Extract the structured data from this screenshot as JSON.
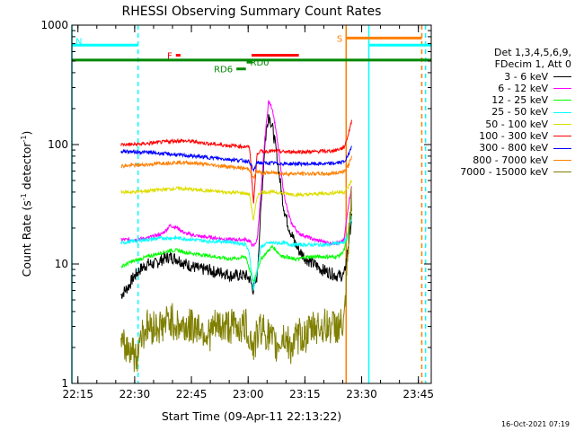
{
  "chart_data": {
    "type": "line",
    "title": "RHESSI Observing Summary Count Rates",
    "xlabel": "Start Time (09-Apr-11 22:13:22)",
    "ylabel_main": "Count Rate (s",
    "ylabel_sup1": "-1",
    "ylabel_mid": " detector",
    "ylabel_sup2": "-1",
    "ylabel_end": ")",
    "x_unit": "minutes after 22:13:22",
    "xlim": [
      0,
      95
    ],
    "ylim": [
      1,
      1000
    ],
    "yscale": "log",
    "x_ticks": [
      {
        "v": 1.6,
        "label": "22:15"
      },
      {
        "v": 16.6,
        "label": "22:30"
      },
      {
        "v": 31.6,
        "label": "22:45"
      },
      {
        "v": 46.6,
        "label": "23:00"
      },
      {
        "v": 61.6,
        "label": "23:15"
      },
      {
        "v": 76.6,
        "label": "23:30"
      },
      {
        "v": 91.6,
        "label": "23:45"
      }
    ],
    "y_ticks": [
      {
        "v": 1,
        "label": "1"
      },
      {
        "v": 10,
        "label": "10"
      },
      {
        "v": 100,
        "label": "100"
      },
      {
        "v": 1000,
        "label": "1000"
      }
    ],
    "legend_header": [
      "Det 1,3,4,5,6,9,",
      "FDecim 1, Att 0"
    ],
    "series": [
      {
        "name": "3 - 6 keV",
        "color": "#000000",
        "x": [
          13,
          14,
          15,
          16,
          18,
          20,
          22,
          24,
          26,
          28,
          30,
          32,
          34,
          36,
          38,
          40,
          42,
          44,
          46,
          47,
          48,
          49,
          50,
          51,
          52,
          53,
          54,
          55,
          56,
          57,
          58,
          59,
          60,
          62,
          64,
          66,
          68,
          70,
          71,
          72,
          73,
          74
        ],
        "y": [
          5.5,
          6,
          6.5,
          7.5,
          9,
          10,
          10,
          11,
          11.5,
          11,
          10,
          9.5,
          9,
          9,
          8.5,
          8.5,
          8,
          8,
          8,
          7.5,
          6,
          8,
          30,
          100,
          180,
          140,
          90,
          50,
          30,
          22,
          18,
          15,
          13,
          11,
          10,
          9,
          8.5,
          8,
          8,
          8,
          14,
          25
        ]
      },
      {
        "name": "6 - 12 keV",
        "color": "#ff00ff",
        "x": [
          13,
          16,
          20,
          24,
          26,
          28,
          30,
          34,
          38,
          42,
          46,
          47,
          48,
          49,
          50,
          51,
          52,
          53,
          54,
          55,
          56,
          57,
          58,
          59,
          60,
          62,
          64,
          66,
          68,
          70,
          71,
          72,
          73,
          74
        ],
        "y": [
          16,
          16,
          16.5,
          18,
          21,
          20,
          18,
          17,
          16.5,
          16,
          16,
          15.5,
          14,
          16,
          40,
          110,
          230,
          200,
          130,
          70,
          40,
          28,
          22,
          20,
          18,
          17,
          16,
          15.5,
          15,
          15,
          15,
          16,
          30,
          45
        ]
      },
      {
        "name": "12 - 25 keV",
        "color": "#00ff00",
        "x": [
          13,
          16,
          20,
          24,
          26,
          28,
          30,
          34,
          38,
          42,
          46,
          47,
          48,
          49,
          50,
          51,
          52,
          53,
          54,
          55,
          56,
          57,
          58,
          59,
          60,
          62,
          64,
          66,
          68,
          70,
          71,
          72,
          73,
          74
        ],
        "y": [
          9.5,
          10.5,
          11.5,
          12.5,
          13,
          13,
          12.5,
          12,
          11.5,
          11,
          11.5,
          9,
          7,
          9,
          11,
          12,
          13,
          14,
          13,
          12,
          11.5,
          11.5,
          11,
          11,
          11,
          11.5,
          11.5,
          11.5,
          11.5,
          11.5,
          12,
          13,
          18,
          30
        ]
      },
      {
        "name": "25 - 50 keV",
        "color": "#00ffff",
        "x": [
          13,
          16,
          20,
          24,
          28,
          32,
          36,
          40,
          44,
          46,
          47,
          48,
          49,
          50,
          52,
          54,
          56,
          58,
          60,
          62,
          64,
          66,
          68,
          70,
          72,
          73,
          74
        ],
        "y": [
          15,
          15.5,
          16,
          16.5,
          16.5,
          16,
          15.5,
          15.5,
          15,
          14.5,
          12,
          6,
          9,
          14,
          15,
          15,
          15,
          14.5,
          14.5,
          14.5,
          14.5,
          14.5,
          14.5,
          15,
          15,
          18,
          25
        ]
      },
      {
        "name": "50 - 100 keV",
        "color": "#dddd00",
        "x": [
          13,
          16,
          20,
          24,
          28,
          32,
          36,
          40,
          44,
          46,
          47,
          48,
          49,
          50,
          52,
          54,
          56,
          58,
          60,
          62,
          64,
          66,
          68,
          70,
          72,
          73,
          74
        ],
        "y": [
          40,
          40,
          41,
          42,
          43,
          42,
          41,
          40,
          39.5,
          39,
          38,
          23,
          37,
          40,
          40,
          40,
          39,
          38.5,
          38,
          38,
          38.5,
          39,
          39,
          40,
          40,
          44,
          50
        ]
      },
      {
        "name": "100 - 300 keV",
        "color": "#ff0000",
        "x": [
          13,
          16,
          20,
          24,
          28,
          32,
          36,
          40,
          44,
          46,
          47,
          48,
          49,
          50,
          52,
          54,
          56,
          58,
          60,
          62,
          64,
          66,
          68,
          70,
          72,
          73,
          74
        ],
        "y": [
          100,
          100,
          102,
          105,
          108,
          106,
          102,
          99,
          97,
          96,
          95,
          32,
          85,
          88,
          88,
          88,
          87,
          87,
          87,
          87,
          87,
          88,
          88,
          90,
          95,
          120,
          160
        ]
      },
      {
        "name": "300 - 800 keV",
        "color": "#0000ff",
        "x": [
          13,
          16,
          20,
          24,
          28,
          32,
          36,
          40,
          44,
          46,
          47,
          48,
          49,
          50,
          52,
          54,
          56,
          58,
          60,
          62,
          64,
          66,
          68,
          70,
          72,
          73,
          74
        ],
        "y": [
          88,
          87,
          86,
          84,
          82,
          80,
          78,
          76,
          74,
          73,
          72,
          60,
          71,
          70,
          70,
          70,
          69,
          69,
          69,
          69,
          69,
          69,
          69,
          70,
          72,
          80,
          100
        ]
      },
      {
        "name": "800 - 7000 keV",
        "color": "#ff7f00",
        "x": [
          13,
          16,
          20,
          24,
          28,
          32,
          36,
          40,
          44,
          46,
          47,
          48,
          49,
          50,
          52,
          54,
          56,
          58,
          60,
          62,
          64,
          66,
          68,
          70,
          72,
          73,
          74
        ],
        "y": [
          66,
          67,
          68,
          70,
          71,
          70,
          68,
          66,
          64,
          63,
          62,
          52,
          60,
          58,
          58,
          58,
          57,
          57,
          57,
          57,
          57,
          57,
          57,
          58,
          60,
          66,
          80
        ]
      },
      {
        "name": "7000 - 15000 keV",
        "color": "#7f7f00",
        "x": [
          13,
          16,
          17,
          18,
          20,
          22,
          24,
          26,
          28,
          30,
          32,
          34,
          36,
          38,
          40,
          42,
          44,
          46,
          47,
          48,
          49,
          50,
          52,
          54,
          56,
          58,
          60,
          62,
          64,
          66,
          68,
          70,
          72,
          73,
          74
        ],
        "y": [
          2,
          2,
          1.5,
          2.5,
          3,
          3,
          3,
          3.5,
          3,
          3,
          3,
          3,
          2.5,
          3,
          3,
          3,
          3,
          3,
          2.5,
          2,
          2.5,
          3,
          2.5,
          2,
          2.5,
          2,
          2.5,
          2.5,
          3,
          3,
          3,
          3,
          3,
          12,
          40
        ]
      }
    ],
    "markers": [
      {
        "type": "segment",
        "label": "N",
        "x1": 0,
        "x2": 17.5,
        "y": 680,
        "color": "#00ffff"
      },
      {
        "type": "segment",
        "label": "",
        "x1": 78.5,
        "x2": 95,
        "y": 680,
        "color": "#00ffff"
      },
      {
        "type": "segment",
        "label": "S",
        "x1": 72.5,
        "x2": 92.5,
        "y": 780,
        "color": "#ff7f00"
      },
      {
        "type": "segment",
        "label": "F",
        "x1": 27.5,
        "x2": 28.7,
        "y": 560,
        "color": "#ff0000"
      },
      {
        "type": "segment",
        "label": "",
        "x1": 47.5,
        "x2": 60.0,
        "y": 560,
        "color": "#ff0000"
      },
      {
        "type": "segment",
        "label": "RD0",
        "x1": 46.2,
        "x2": 47.8,
        "y": 490,
        "color": "#008800"
      },
      {
        "type": "segment",
        "label": "RD6",
        "x1": 43.5,
        "x2": 46.0,
        "y": 430,
        "color": "#008800"
      },
      {
        "type": "segment",
        "label": "",
        "x1": 0,
        "x2": 95,
        "y": 510,
        "color": "#008800"
      }
    ],
    "vlines": [
      {
        "x": 0,
        "color": "#00ffff",
        "style": "solid"
      },
      {
        "x": 17.5,
        "color": "#00ffff",
        "style": "dashed"
      },
      {
        "x": 72.5,
        "color": "#ff7f00",
        "style": "solid"
      },
      {
        "x": 78.5,
        "color": "#00ffff",
        "style": "solid"
      },
      {
        "x": 92.5,
        "color": "#ff7f00",
        "style": "dashed"
      },
      {
        "x": 93.5,
        "color": "#00ffff",
        "style": "dashed"
      }
    ]
  },
  "footer": "16-Oct-2021 07:19"
}
